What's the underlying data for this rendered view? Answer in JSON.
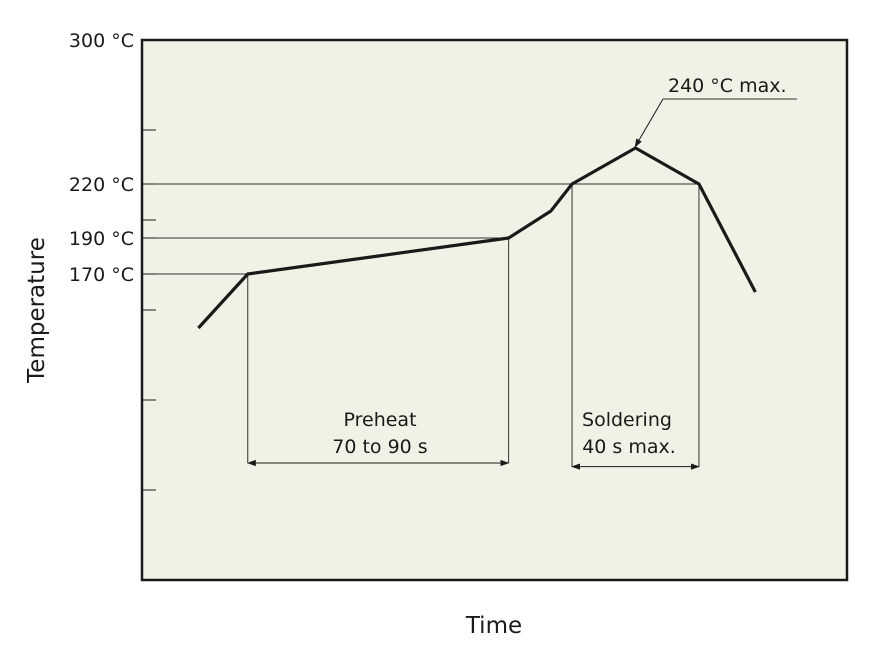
{
  "chart_data": {
    "type": "line",
    "xlabel": "Time",
    "ylabel": "Temperature",
    "ylim": [
      0,
      300
    ],
    "y_tick_labels": [
      {
        "value": 300,
        "label": "300 °C"
      },
      {
        "value": 220,
        "label": "220 °C"
      },
      {
        "value": 190,
        "label": "190 °C"
      },
      {
        "value": 170,
        "label": "170 °C"
      }
    ],
    "y_minor_ticks": [
      250,
      200,
      150,
      100,
      50
    ],
    "series": [
      {
        "points": [
          {
            "t": 8,
            "temp": 140
          },
          {
            "t": 15,
            "temp": 170
          },
          {
            "t": 52,
            "temp": 190
          },
          {
            "t": 58,
            "temp": 205
          },
          {
            "t": 61,
            "temp": 220
          },
          {
            "t": 70,
            "temp": 240
          },
          {
            "t": 79,
            "temp": 220
          },
          {
            "t": 87,
            "temp": 160
          }
        ]
      }
    ],
    "guides": {
      "preheat_start_t": 15,
      "preheat_end_t": 52,
      "solder_start_t": 61,
      "solder_end_t": 79,
      "bracket_temp_preheat": 65,
      "bracket_temp_solder": 63
    },
    "annotations": {
      "preheat_title": "Preheat",
      "preheat_time": "70 to 90 s",
      "solder_title": "Soldering",
      "solder_time": "40 s max.",
      "peak_label": "240 °C max."
    },
    "colors": {
      "plot_background": "#f2f1e6",
      "line": "#1a1a1a",
      "guide": "#333333"
    }
  }
}
